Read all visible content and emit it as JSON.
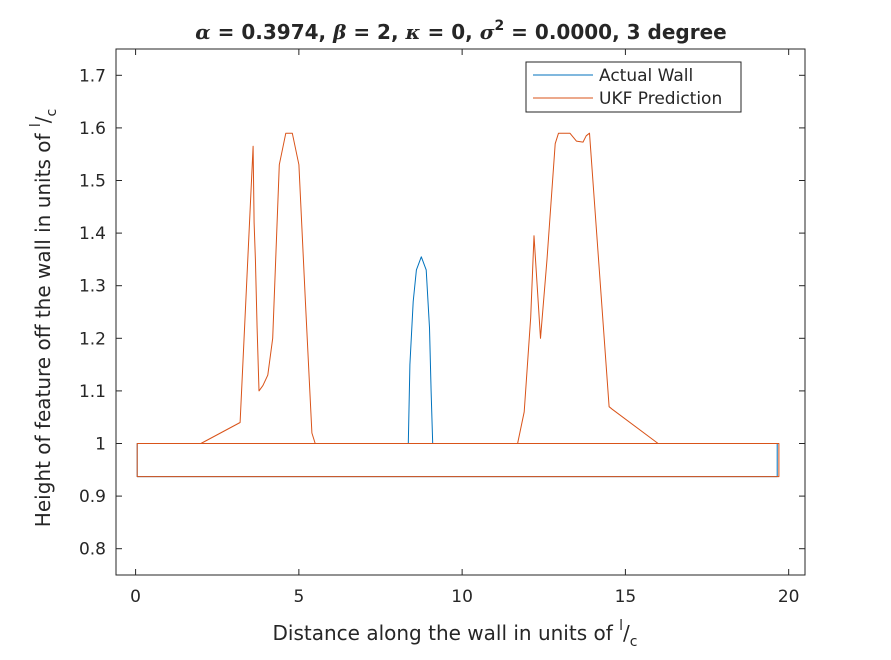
{
  "chart_data": {
    "type": "line",
    "title": {
      "alpha_symbol": "α",
      "alpha_text": " = 0.3974, ",
      "beta_symbol": "β",
      "beta_text": " = 2, ",
      "kappa_symbol": "κ",
      "kappa_text": " = 0, ",
      "sigma_symbol": "σ",
      "sigma_exp": "2",
      "sigma_text": " = 0.0000, 3 degree"
    },
    "xlabel": {
      "main": "Distance along the wall in units of ",
      "sup": "l",
      "slash": "/",
      "sub": "c"
    },
    "ylabel": {
      "main": "Height of feature off the wall in units of ",
      "sup": "l",
      "slash": "/",
      "sub": "c"
    },
    "xlim": [
      -0.6,
      20.5
    ],
    "ylim": [
      0.75,
      1.75
    ],
    "xticks": [
      0,
      5,
      10,
      15,
      20
    ],
    "xtick_labels": [
      "0",
      "5",
      "10",
      "15",
      "20"
    ],
    "yticks": [
      0.8,
      0.9,
      1.0,
      1.1,
      1.2,
      1.3,
      1.4,
      1.5,
      1.6,
      1.7
    ],
    "ytick_labels": [
      "0.8",
      "0.9",
      "1",
      "1.1",
      "1.2",
      "1.3",
      "1.4",
      "1.5",
      "1.6",
      "1.7"
    ],
    "grid": false,
    "legend_position": "top-right",
    "series": [
      {
        "name": "Actual Wall",
        "color": "#0072BD",
        "points": [
          [
            0.05,
            1.0
          ],
          [
            0.05,
            0.937
          ],
          [
            19.65,
            0.937
          ],
          [
            19.65,
            1.0
          ],
          [
            0.05,
            1.0
          ],
          [
            8.35,
            1.0
          ],
          [
            8.4,
            1.15
          ],
          [
            8.5,
            1.27
          ],
          [
            8.6,
            1.33
          ],
          [
            8.75,
            1.355
          ],
          [
            8.9,
            1.33
          ],
          [
            9.0,
            1.22
          ],
          [
            9.05,
            1.1
          ],
          [
            9.1,
            1.0
          ],
          [
            19.65,
            1.0
          ],
          [
            19.65,
            0.937
          ]
        ]
      },
      {
        "name": "UKF Prediction",
        "color": "#D95319",
        "points": [
          [
            0.05,
            1.0
          ],
          [
            0.05,
            0.937
          ],
          [
            19.7,
            0.937
          ],
          [
            19.7,
            1.0
          ],
          [
            0.05,
            1.0
          ],
          [
            2.0,
            1.0
          ],
          [
            3.2,
            1.04
          ],
          [
            3.55,
            1.5
          ],
          [
            3.6,
            1.565
          ],
          [
            3.63,
            1.42
          ],
          [
            3.67,
            1.35
          ],
          [
            3.72,
            1.22
          ],
          [
            3.78,
            1.1
          ],
          [
            3.9,
            1.11
          ],
          [
            4.05,
            1.13
          ],
          [
            4.2,
            1.2
          ],
          [
            4.4,
            1.53
          ],
          [
            4.6,
            1.59
          ],
          [
            4.8,
            1.59
          ],
          [
            5.0,
            1.53
          ],
          [
            5.2,
            1.27
          ],
          [
            5.4,
            1.02
          ],
          [
            5.5,
            1.0
          ],
          [
            11.7,
            1.0
          ],
          [
            11.9,
            1.06
          ],
          [
            12.1,
            1.24
          ],
          [
            12.2,
            1.395
          ],
          [
            12.4,
            1.2
          ],
          [
            12.6,
            1.35
          ],
          [
            12.85,
            1.57
          ],
          [
            12.95,
            1.59
          ],
          [
            13.3,
            1.59
          ],
          [
            13.5,
            1.575
          ],
          [
            13.7,
            1.573
          ],
          [
            13.8,
            1.585
          ],
          [
            13.9,
            1.59
          ],
          [
            14.5,
            1.07
          ],
          [
            14.6,
            1.065
          ],
          [
            16.0,
            1.0
          ],
          [
            19.7,
            1.0
          ],
          [
            19.7,
            0.937
          ]
        ]
      }
    ]
  }
}
